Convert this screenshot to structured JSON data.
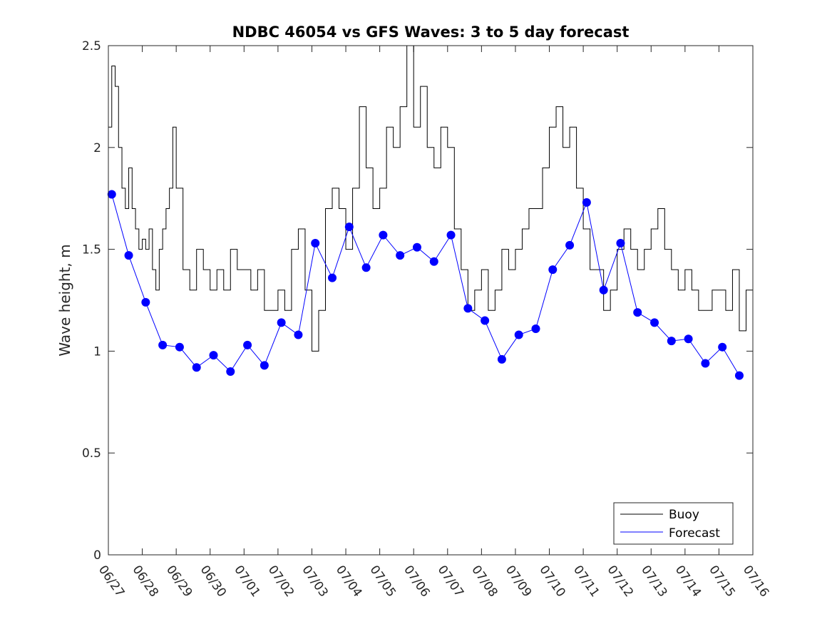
{
  "chart_data": {
    "type": "line",
    "title": "NDBC 46054 vs GFS Waves: 3 to 5 day forecast",
    "xlabel": "",
    "ylabel": "Wave height, m",
    "ylim": [
      0,
      2.5
    ],
    "xlim": [
      "06/27",
      "07/16"
    ],
    "x_tick_labels": [
      "06/27",
      "06/28",
      "06/29",
      "06/30",
      "07/01",
      "07/02",
      "07/03",
      "07/04",
      "07/05",
      "07/06",
      "07/07",
      "07/08",
      "07/09",
      "07/10",
      "07/11",
      "07/12",
      "07/13",
      "07/14",
      "07/15",
      "07/16"
    ],
    "y_tick_labels": [
      "0",
      "0.5",
      "1",
      "1.5",
      "2",
      "2.5"
    ],
    "grid": false,
    "legend_position": "bottom-right",
    "legend": [
      "Buoy",
      "Forecast"
    ],
    "colors": {
      "buoy": "#000000",
      "forecast": "#0000ff",
      "axes": "#262626"
    },
    "series": [
      {
        "name": "Buoy",
        "x_days": [
          0,
          0.1,
          0.2,
          0.3,
          0.4,
          0.5,
          0.6,
          0.7,
          0.8,
          0.9,
          1.0,
          1.1,
          1.2,
          1.3,
          1.4,
          1.5,
          1.6,
          1.7,
          1.8,
          1.9,
          2.0,
          2.2,
          2.4,
          2.6,
          2.8,
          3.0,
          3.2,
          3.4,
          3.6,
          3.8,
          4.0,
          4.2,
          4.4,
          4.6,
          4.8,
          5.0,
          5.2,
          5.4,
          5.6,
          5.8,
          6.0,
          6.2,
          6.4,
          6.6,
          6.8,
          7.0,
          7.2,
          7.4,
          7.6,
          7.8,
          8.0,
          8.2,
          8.4,
          8.6,
          8.8,
          9.0,
          9.2,
          9.4,
          9.6,
          9.8,
          10.0,
          10.2,
          10.4,
          10.6,
          10.8,
          11.0,
          11.2,
          11.4,
          11.6,
          11.8,
          12.0,
          12.2,
          12.4,
          12.6,
          12.8,
          13.0,
          13.2,
          13.4,
          13.6,
          13.8,
          14.0,
          14.2,
          14.4,
          14.6,
          14.8,
          15.0,
          15.2,
          15.4,
          15.6,
          15.8,
          16.0,
          16.2,
          16.4,
          16.6,
          16.8,
          17.0,
          17.2,
          17.4,
          17.6,
          17.8,
          18.0,
          18.2,
          18.4,
          18.6,
          18.8,
          19.0
        ],
        "values": [
          2.1,
          2.4,
          2.3,
          2.0,
          1.8,
          1.7,
          1.9,
          1.7,
          1.6,
          1.5,
          1.55,
          1.5,
          1.6,
          1.4,
          1.3,
          1.5,
          1.6,
          1.7,
          1.8,
          2.1,
          1.8,
          1.4,
          1.3,
          1.5,
          1.4,
          1.3,
          1.4,
          1.3,
          1.5,
          1.4,
          1.4,
          1.3,
          1.4,
          1.2,
          1.2,
          1.3,
          1.2,
          1.5,
          1.6,
          1.3,
          1.0,
          1.2,
          1.7,
          1.8,
          1.7,
          1.5,
          1.8,
          2.2,
          1.9,
          1.7,
          1.8,
          2.1,
          2.0,
          2.2,
          2.5,
          2.1,
          2.3,
          2.0,
          1.9,
          2.1,
          2.0,
          1.6,
          1.4,
          1.2,
          1.3,
          1.4,
          1.2,
          1.3,
          1.5,
          1.4,
          1.5,
          1.6,
          1.7,
          1.7,
          1.9,
          2.1,
          2.2,
          2.0,
          2.1,
          1.8,
          1.6,
          1.4,
          1.4,
          1.2,
          1.3,
          1.5,
          1.6,
          1.5,
          1.4,
          1.5,
          1.6,
          1.7,
          1.5,
          1.4,
          1.3,
          1.4,
          1.3,
          1.2,
          1.2,
          1.3,
          1.3,
          1.2,
          1.4,
          1.1,
          1.3,
          1.2
        ]
      },
      {
        "name": "Forecast",
        "x_days": [
          0.1,
          0.6,
          1.1,
          1.6,
          2.1,
          2.6,
          3.1,
          3.6,
          4.1,
          4.6,
          5.1,
          5.6,
          6.1,
          6.6,
          7.1,
          7.6,
          8.1,
          8.6,
          9.1,
          9.6,
          10.1,
          10.6,
          11.1,
          11.6,
          12.1,
          12.6,
          13.1,
          13.6,
          14.1,
          14.6,
          15.1,
          15.6,
          16.1,
          16.6,
          17.1,
          17.6,
          18.1,
          18.6
        ],
        "values": [
          1.77,
          1.47,
          1.24,
          1.03,
          1.02,
          0.92,
          0.98,
          0.9,
          1.03,
          0.93,
          1.14,
          1.08,
          1.53,
          1.36,
          1.61,
          1.41,
          1.57,
          1.47,
          1.51,
          1.44,
          1.57,
          1.21,
          1.15,
          0.96,
          1.08,
          1.11,
          1.4,
          1.52,
          1.73,
          1.3,
          1.53,
          1.19,
          1.14,
          1.05,
          1.06,
          0.94,
          1.02,
          0.88
        ]
      }
    ]
  }
}
